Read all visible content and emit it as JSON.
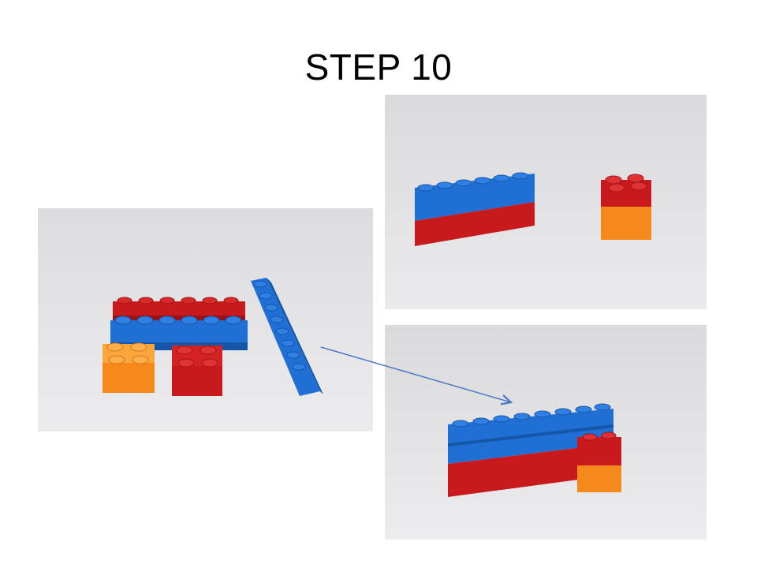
{
  "slide": {
    "title": "STEP 10"
  },
  "photos": [
    {
      "name": "bricks-laid-out",
      "description_icon": "lego-bricks-photo"
    },
    {
      "name": "wall-and-tower",
      "description_icon": "lego-bricks-photo"
    },
    {
      "name": "assembled-result",
      "description_icon": "lego-bricks-photo"
    }
  ],
  "colors": {
    "brick_red": "#c8191c",
    "brick_blue": "#1f6fd4",
    "brick_orange": "#f5891b",
    "arrow": "#4a78c4",
    "background": "#e4e4e6"
  }
}
